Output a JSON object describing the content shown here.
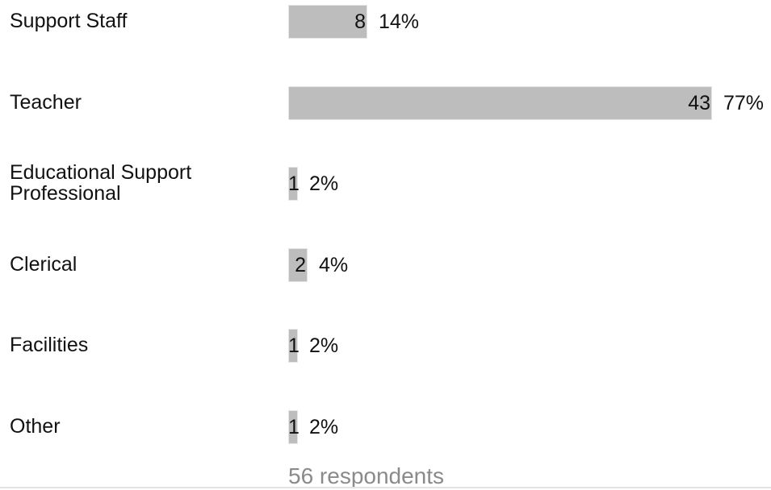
{
  "chart_data": {
    "type": "bar",
    "orientation": "horizontal",
    "categories": [
      "Support Staff",
      "Teacher",
      "Educational Support Professional",
      "Clerical",
      "Facilities",
      "Other"
    ],
    "values": [
      8,
      43,
      1,
      2,
      1,
      1
    ],
    "percent_labels": [
      "14%",
      "77%",
      "2%",
      "4%",
      "2%",
      "2%"
    ],
    "bar_color": "#bdbdbd",
    "grid": false,
    "title": "",
    "xlabel": "",
    "ylabel": ""
  },
  "footer": {
    "respondents": "56 respondents"
  }
}
